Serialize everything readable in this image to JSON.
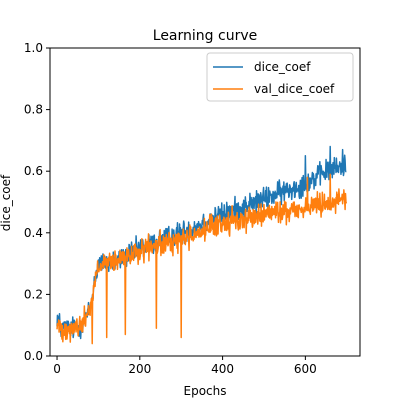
{
  "chart_data": {
    "type": "line",
    "title": "Learning curve",
    "xlabel": "Epochs",
    "ylabel": "dice_coef",
    "xlim": [
      -17,
      732
    ],
    "ylim": [
      0,
      1
    ],
    "x_ticks": [
      0,
      200,
      400,
      600
    ],
    "y_ticks": [
      0.0,
      0.2,
      0.4,
      0.6,
      0.8,
      1.0
    ],
    "legend": {
      "placement": "top-right"
    },
    "grid": false,
    "num_epochs": 700,
    "series": [
      {
        "name": "dice_coef",
        "color": "#1f77b4",
        "anchors": [
          [
            0,
            0.13
          ],
          [
            10,
            0.09
          ],
          [
            40,
            0.09
          ],
          [
            60,
            0.1
          ],
          [
            80,
            0.15
          ],
          [
            90,
            0.24
          ],
          [
            100,
            0.3
          ],
          [
            150,
            0.31
          ],
          [
            200,
            0.35
          ],
          [
            300,
            0.4
          ],
          [
            400,
            0.46
          ],
          [
            500,
            0.51
          ],
          [
            600,
            0.56
          ],
          [
            650,
            0.6
          ],
          [
            699,
            0.62
          ]
        ],
        "noise": 0.025,
        "spikes": [],
        "max_points": [
          [
            660,
            0.68
          ],
          [
            690,
            0.67
          ],
          [
            600,
            0.65
          ]
        ]
      },
      {
        "name": "val_dice_coef",
        "color": "#ff7f0e",
        "anchors": [
          [
            0,
            0.1
          ],
          [
            10,
            0.09
          ],
          [
            40,
            0.09
          ],
          [
            60,
            0.1
          ],
          [
            80,
            0.16
          ],
          [
            90,
            0.23
          ],
          [
            100,
            0.29
          ],
          [
            150,
            0.31
          ],
          [
            200,
            0.34
          ],
          [
            300,
            0.38
          ],
          [
            400,
            0.43
          ],
          [
            500,
            0.46
          ],
          [
            600,
            0.48
          ],
          [
            650,
            0.5
          ],
          [
            699,
            0.51
          ]
        ],
        "noise": 0.025,
        "spikes": [
          [
            85,
            0.04
          ],
          [
            120,
            0.06
          ],
          [
            165,
            0.07
          ],
          [
            240,
            0.09
          ],
          [
            300,
            0.06
          ]
        ],
        "max_points": [
          [
            660,
            0.59
          ],
          [
            605,
            0.58
          ]
        ]
      }
    ]
  }
}
